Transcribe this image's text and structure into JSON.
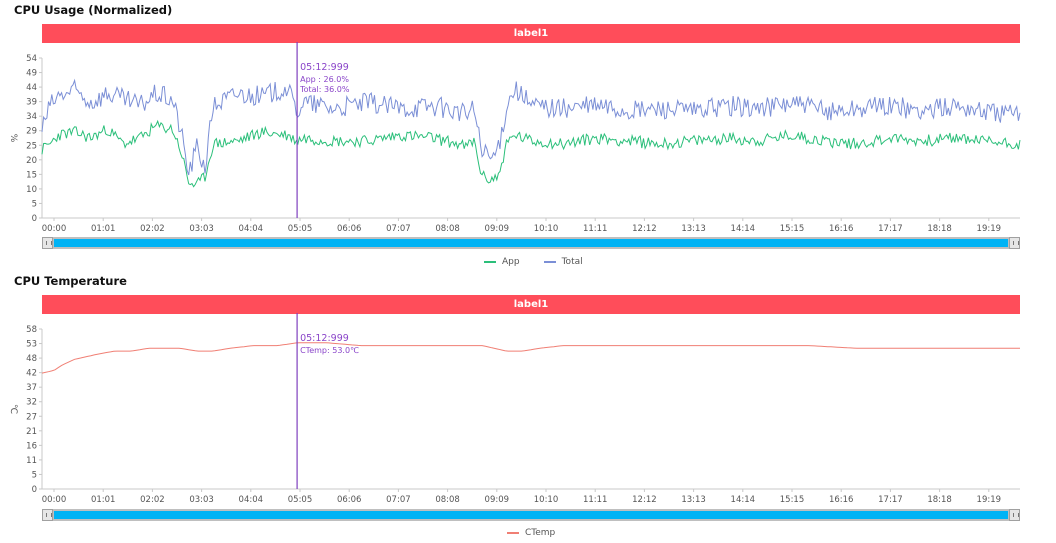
{
  "charts": [
    {
      "title": "CPU Usage (Normalized)",
      "label": "label1",
      "cursor": {
        "time": "05:12:999",
        "lines": [
          "App : 26.0%",
          "Total: 36.0%"
        ]
      },
      "legend": [
        {
          "name": "App",
          "color": "#2bbf7a"
        },
        {
          "name": "Total",
          "color": "#7b8fd6"
        }
      ]
    },
    {
      "title": "CPU Temperature",
      "label": "label1",
      "cursor": {
        "time": "05:12:999",
        "lines": [
          "CTemp: 53.0℃"
        ]
      },
      "legend": [
        {
          "name": "CTemp",
          "color": "#f07f74"
        }
      ]
    }
  ],
  "chart_data": [
    {
      "type": "line",
      "title": "CPU Usage (Normalized)",
      "ylabel": "%",
      "x_ticks": [
        "00:00",
        "01:01",
        "02:02",
        "03:03",
        "04:04",
        "05:05",
        "06:06",
        "07:07",
        "08:08",
        "09:09",
        "10:10",
        "11:11",
        "12:12",
        "13:13",
        "14:14",
        "15:15",
        "16:16",
        "17:17",
        "18:18",
        "19:19"
      ],
      "y_ticks": [
        0,
        5,
        10,
        15,
        20,
        25,
        29,
        34,
        39,
        44,
        49,
        54
      ],
      "ylim": [
        0,
        54
      ],
      "xlim_seconds": [
        0,
        1200
      ],
      "cursor_seconds": 313,
      "series": [
        {
          "name": "App",
          "color": "#2bbf7a",
          "x": [
            0,
            10,
            20,
            40,
            60,
            80,
            100,
            120,
            140,
            160,
            170,
            180,
            190,
            200,
            210,
            240,
            270,
            300,
            313,
            320,
            360,
            400,
            440,
            480,
            510,
            520,
            530,
            540,
            550,
            560,
            570,
            580,
            600,
            640,
            680,
            720,
            760,
            800,
            840,
            880,
            920,
            960,
            1000,
            1040,
            1080,
            1120,
            1160,
            1200
          ],
          "y": [
            23,
            25,
            28,
            29,
            27,
            30,
            25,
            27,
            31,
            30,
            23,
            12,
            11,
            14,
            25,
            26,
            29,
            28,
            26,
            27,
            26,
            26,
            28,
            27,
            25,
            24,
            26,
            14,
            13,
            14,
            25,
            28,
            26,
            25,
            27,
            26,
            25,
            26,
            27,
            26,
            28,
            26,
            25,
            27,
            26,
            27,
            26,
            25
          ]
        },
        {
          "name": "Total",
          "color": "#7b8fd6",
          "x": [
            0,
            10,
            20,
            40,
            60,
            80,
            100,
            120,
            140,
            160,
            170,
            180,
            190,
            200,
            210,
            240,
            270,
            300,
            313,
            320,
            360,
            400,
            440,
            480,
            510,
            520,
            530,
            540,
            550,
            560,
            570,
            580,
            600,
            640,
            680,
            720,
            760,
            800,
            840,
            880,
            920,
            960,
            1000,
            1040,
            1080,
            1120,
            1160,
            1200
          ],
          "y": [
            30,
            38,
            41,
            43,
            39,
            42,
            40,
            38,
            42,
            40,
            30,
            15,
            24,
            17,
            38,
            42,
            41,
            44,
            36,
            39,
            37,
            39,
            37,
            38,
            36,
            35,
            37,
            22,
            20,
            23,
            38,
            44,
            38,
            37,
            38,
            36,
            37,
            36,
            38,
            37,
            39,
            36,
            37,
            38,
            36,
            38,
            36,
            35
          ]
        }
      ]
    },
    {
      "type": "line",
      "title": "CPU Temperature",
      "ylabel": "℃",
      "x_ticks": [
        "00:00",
        "01:01",
        "02:02",
        "03:03",
        "04:04",
        "05:05",
        "06:06",
        "07:07",
        "08:08",
        "09:09",
        "10:10",
        "11:11",
        "12:12",
        "13:13",
        "14:14",
        "15:15",
        "16:16",
        "17:17",
        "18:18",
        "19:19"
      ],
      "y_ticks": [
        0,
        5,
        11,
        16,
        21,
        27,
        32,
        37,
        42,
        48,
        53,
        58
      ],
      "ylim": [
        0,
        58
      ],
      "xlim_seconds": [
        0,
        1200
      ],
      "cursor_seconds": 313,
      "series": [
        {
          "name": "CTemp",
          "color": "#f07f74",
          "x": [
            0,
            15,
            25,
            40,
            55,
            70,
            90,
            110,
            130,
            150,
            170,
            190,
            210,
            230,
            260,
            290,
            313,
            350,
            390,
            430,
            470,
            510,
            540,
            570,
            590,
            610,
            640,
            700,
            760,
            820,
            880,
            940,
            1000,
            1050,
            1100,
            1150,
            1200
          ],
          "y": [
            42,
            43,
            45,
            47,
            48,
            49,
            50,
            50,
            51,
            51,
            51,
            50,
            50,
            51,
            52,
            52,
            53,
            53,
            52,
            52,
            52,
            52,
            52,
            50,
            50,
            51,
            52,
            52,
            52,
            52,
            52,
            52,
            51,
            51,
            51,
            51,
            51
          ]
        }
      ]
    }
  ]
}
